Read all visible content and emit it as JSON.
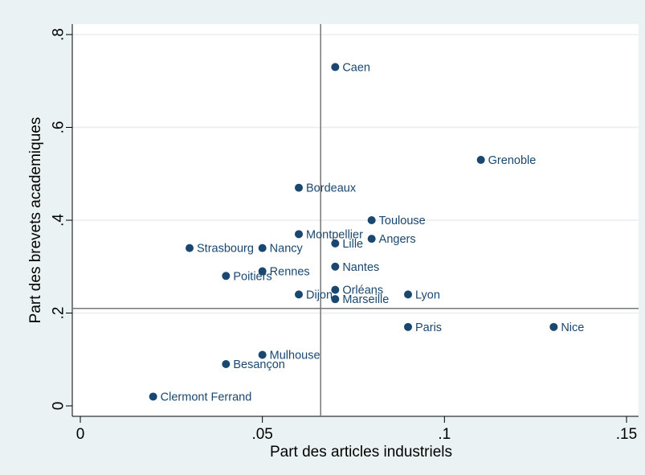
{
  "chart_data": {
    "type": "scatter",
    "xlabel": "Part des articles industriels",
    "ylabel": "Part des brevets academiques",
    "xlim": [
      0,
      0.15
    ],
    "ylim": [
      0,
      0.8
    ],
    "x_ticks": [
      {
        "value": 0,
        "label": "0"
      },
      {
        "value": 0.05,
        "label": ".05"
      },
      {
        "value": 0.1,
        "label": ".1"
      },
      {
        "value": 0.15,
        "label": ".15"
      }
    ],
    "y_ticks": [
      {
        "value": 0,
        "label": "0"
      },
      {
        "value": 0.2,
        "label": ".2"
      },
      {
        "value": 0.4,
        "label": ".4"
      },
      {
        "value": 0.6,
        "label": ".6"
      },
      {
        "value": 0.8,
        "label": ".8"
      }
    ],
    "grid": true,
    "reference_lines": {
      "x": 0.066,
      "y": 0.21
    },
    "marker_color": "#1a476f",
    "background_color": "#eaf2f3",
    "points": [
      {
        "label": "Caen",
        "x": 0.07,
        "y": 0.73
      },
      {
        "label": "Grenoble",
        "x": 0.11,
        "y": 0.53
      },
      {
        "label": "Bordeaux",
        "x": 0.06,
        "y": 0.47
      },
      {
        "label": "Toulouse",
        "x": 0.08,
        "y": 0.4
      },
      {
        "label": "Montpellier",
        "x": 0.06,
        "y": 0.37
      },
      {
        "label": "Angers",
        "x": 0.08,
        "y": 0.36
      },
      {
        "label": "Lille",
        "x": 0.07,
        "y": 0.35
      },
      {
        "label": "Strasbourg",
        "x": 0.03,
        "y": 0.34
      },
      {
        "label": "Nancy",
        "x": 0.05,
        "y": 0.34
      },
      {
        "label": "Nantes",
        "x": 0.07,
        "y": 0.3
      },
      {
        "label": "Rennes",
        "x": 0.05,
        "y": 0.29
      },
      {
        "label": "Poitiers",
        "x": 0.04,
        "y": 0.28
      },
      {
        "label": "Orléans",
        "x": 0.07,
        "y": 0.25
      },
      {
        "label": "Dijon",
        "x": 0.06,
        "y": 0.24
      },
      {
        "label": "Lyon",
        "x": 0.09,
        "y": 0.24
      },
      {
        "label": "Marseille",
        "x": 0.07,
        "y": 0.23
      },
      {
        "label": "Paris",
        "x": 0.09,
        "y": 0.17
      },
      {
        "label": "Nice",
        "x": 0.13,
        "y": 0.17
      },
      {
        "label": "Mulhouse",
        "x": 0.05,
        "y": 0.11
      },
      {
        "label": "Besançon",
        "x": 0.04,
        "y": 0.09
      },
      {
        "label": "Clermont Ferrand",
        "x": 0.02,
        "y": 0.02
      }
    ]
  }
}
